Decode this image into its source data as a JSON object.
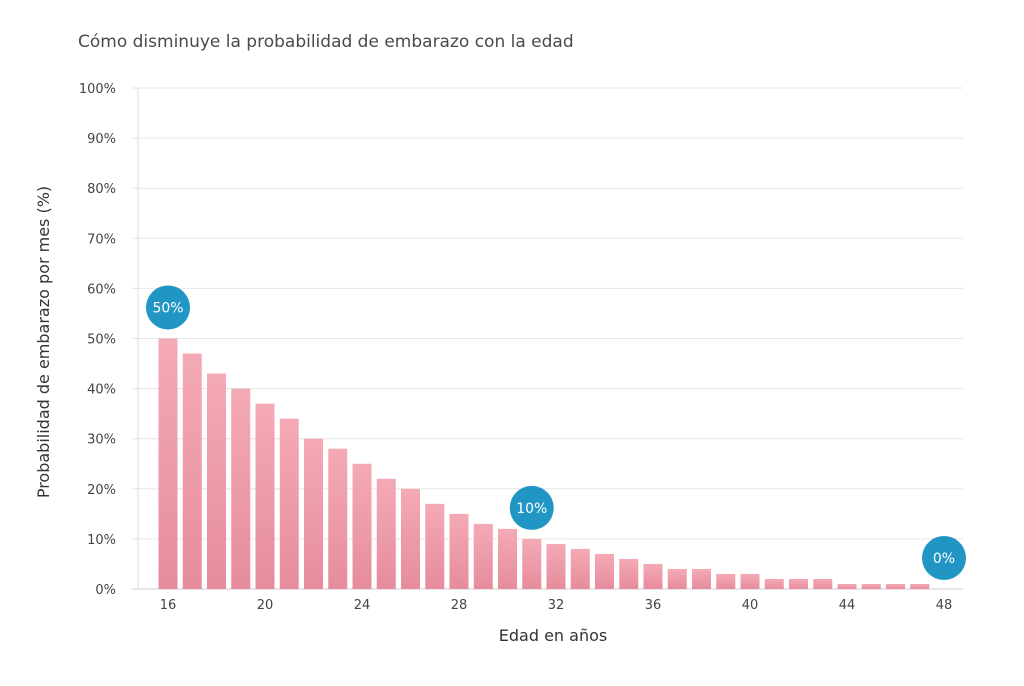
{
  "chart_data": {
    "type": "bar",
    "title": "Cómo disminuye la probabilidad de embarazo con la edad",
    "xlabel": "Edad en años",
    "ylabel": "Probabilidad de embarazo por mes (%)",
    "x": [
      16,
      17,
      18,
      19,
      20,
      21,
      22,
      23,
      24,
      25,
      26,
      27,
      28,
      29,
      30,
      31,
      32,
      33,
      34,
      35,
      36,
      37,
      38,
      39,
      40,
      41,
      42,
      43,
      44,
      45,
      46,
      47
    ],
    "values": [
      50,
      47,
      43,
      40,
      37,
      34,
      30,
      28,
      25,
      22,
      20,
      17,
      15,
      13,
      12,
      10,
      9,
      8,
      7,
      6,
      5,
      4,
      4,
      3,
      3,
      2,
      2,
      2,
      1,
      1,
      1,
      1
    ],
    "xticks": [
      "16",
      "20",
      "24",
      "28",
      "32",
      "36",
      "40",
      "44",
      "48"
    ],
    "yticks": [
      "0%",
      "10%",
      "20%",
      "30%",
      "40%",
      "50%",
      "60%",
      "70%",
      "80%",
      "90%",
      "100%"
    ],
    "ylim": [
      0,
      100
    ],
    "xlim": [
      16,
      48
    ],
    "grid": true,
    "annotations": [
      {
        "x": 16,
        "y": 50,
        "label": "50%"
      },
      {
        "x": 31,
        "y": 10,
        "label": "10%"
      },
      {
        "x": 48,
        "y": 0,
        "label": "0%"
      }
    ],
    "colors": {
      "bar_top": "#f4aab5",
      "bar_bottom": "#e68c9c",
      "annotation": "#2196c4",
      "grid": "#e6e6e6"
    }
  }
}
